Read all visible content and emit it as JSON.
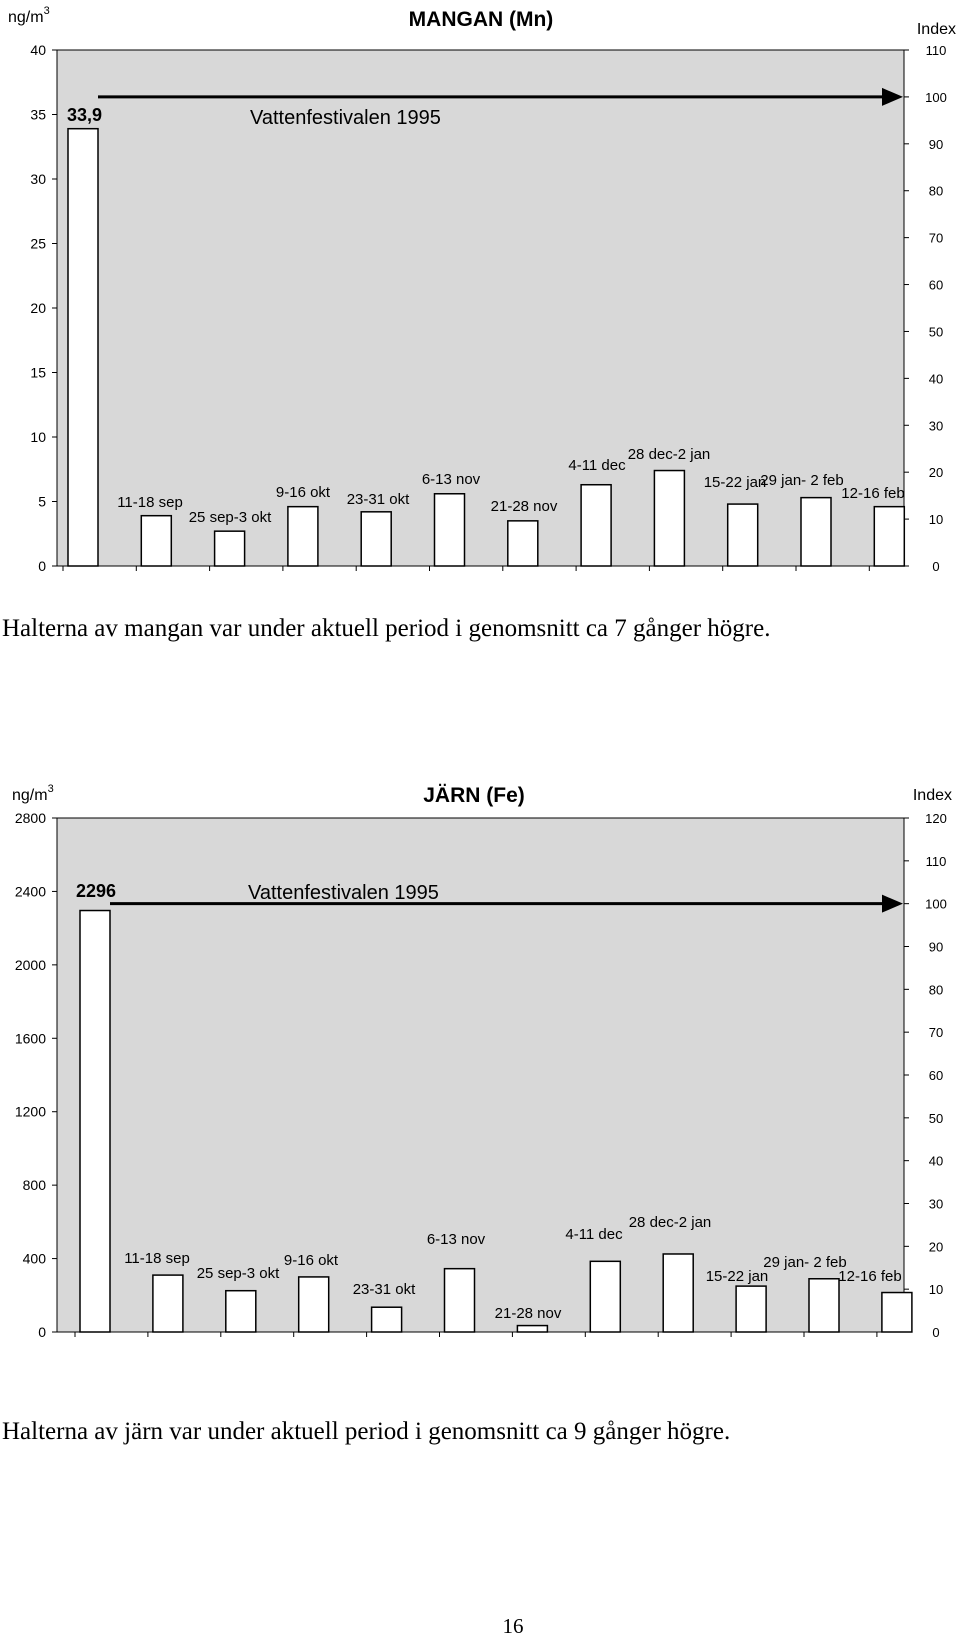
{
  "chart_data": [
    {
      "type": "bar",
      "title": "MANGAN (Mn)",
      "ylabel": "ng/m",
      "ylabel_sup": "3",
      "y2label": "Index",
      "ylim": [
        0,
        40
      ],
      "y_ticks": [
        0,
        5,
        10,
        15,
        20,
        25,
        30,
        35,
        40
      ],
      "y2lim": [
        0,
        110
      ],
      "y2_ticks": [
        0,
        10,
        20,
        30,
        40,
        50,
        60,
        70,
        80,
        90,
        100,
        110
      ],
      "grid": false,
      "categories": [
        "Vattenfestivalen 1995",
        "11-18 sep",
        "25 sep-3 okt",
        "9-16 okt",
        "23-31 okt",
        "6-13 nov",
        "21-28 nov",
        "4-11 dec",
        "28 dec-2 jan",
        "15-22 jan",
        "29 jan- 2 feb",
        "12-16 feb"
      ],
      "values": [
        33.9,
        3.9,
        2.7,
        4.6,
        4.2,
        5.6,
        3.5,
        6.3,
        7.4,
        4.8,
        5.3,
        4.6
      ],
      "value_labels": [
        "33,9"
      ],
      "annotation": {
        "text": "Vattenfestivalen 1995",
        "arrow_to_index": 100
      }
    },
    {
      "type": "bar",
      "title": "JÄRN (Fe)",
      "ylabel": "ng/m",
      "ylabel_sup": "3",
      "y2label": "Index",
      "ylim": [
        0,
        2800
      ],
      "y_ticks": [
        0,
        400,
        800,
        1200,
        1600,
        2000,
        2400,
        2800
      ],
      "y2lim": [
        0,
        120
      ],
      "y2_ticks": [
        0,
        10,
        20,
        30,
        40,
        50,
        60,
        70,
        80,
        90,
        100,
        110,
        120
      ],
      "grid": false,
      "categories": [
        "Vattenfestivalen 1995",
        "11-18 sep",
        "25 sep-3 okt",
        "9-16 okt",
        "23-31 okt",
        "6-13 nov",
        "21-28 nov",
        "4-11 dec",
        "28 dec-2 jan",
        "15-22 jan",
        "29 jan- 2 feb",
        "12-16 feb"
      ],
      "values": [
        2296,
        310,
        225,
        300,
        135,
        345,
        35,
        385,
        425,
        250,
        290,
        215
      ],
      "value_labels": [
        "2296"
      ],
      "annotation": {
        "text": "Vattenfestivalen 1995",
        "arrow_to_index": 100
      }
    }
  ],
  "captions": {
    "mn": "Halterna av mangan var under aktuell period i genomsnitt ca 7 gånger högre.",
    "fe": "Halterna av järn var under aktuell period i genomsnitt ca 9 gånger högre."
  },
  "page_number": "16"
}
